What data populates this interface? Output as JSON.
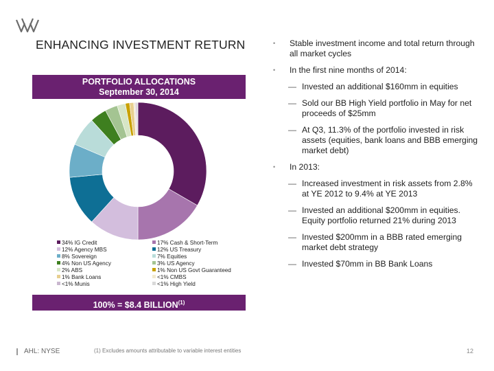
{
  "title": "ENHANCING INVESTMENT RETURN",
  "allocation_banner": {
    "line1": "PORTFOLIO ALLOCATIONS",
    "line2": "September 30, 2014"
  },
  "total_banner": {
    "text": "100% = $8.4 BILLION",
    "note_ref": "(1)"
  },
  "chart_data": {
    "type": "pie",
    "title": "PORTFOLIO ALLOCATIONS September 30, 2014",
    "labels": [
      "34% IG Credit",
      "17% Cash & Short-Term",
      "12% Agency MBS",
      "12% US Treasury",
      "8% Sovereign",
      "7% Equities",
      "4% Non US Agency",
      "3% US Agency",
      "2% ABS",
      "1% Non US Govt Guaranteed",
      "1% Bank Loans",
      "<1% CMBS",
      "<1% Munis",
      "<1% High Yield"
    ],
    "values": [
      34,
      17,
      12,
      12,
      8,
      7,
      4,
      3,
      2,
      1,
      1,
      0.4,
      0.3,
      0.3
    ],
    "colors": [
      "#5c1c5e",
      "#a775ad",
      "#d3bedd",
      "#0e6f95",
      "#6caec8",
      "#b9dcd9",
      "#3e7f1f",
      "#a4c492",
      "#d7e6c6",
      "#c9a100",
      "#e8cf8f",
      "#f2ead0",
      "#c9b7cf",
      "#d9d9d9"
    ],
    "legend": "bottom"
  },
  "bullets": [
    {
      "type": "main",
      "text": "Stable investment income and total return through all market cycles"
    },
    {
      "type": "main",
      "text": "In the first nine months of 2014:"
    },
    {
      "type": "sub",
      "text": "Invested an additional $160mm in equities"
    },
    {
      "type": "sub",
      "text": "Sold our BB High Yield portfolio in May for net proceeds of $25mm"
    },
    {
      "type": "sub",
      "text": "At Q3, 11.3% of the portfolio invested in risk assets (equities, bank loans and BBB emerging market debt)"
    },
    {
      "type": "main",
      "text": "In 2013:"
    },
    {
      "type": "sub",
      "text": "Increased investment in risk assets from 2.8% at YE 2012 to 9.4% at YE 2013"
    },
    {
      "type": "sub",
      "text": "Invested an additional $200mm in equities. Equity portfolio returned 21% during 2013"
    },
    {
      "type": "sub",
      "text": "Invested $200mm in a BBB rated emerging market debt strategy"
    },
    {
      "type": "sub",
      "text": "Invested $70mm in BB Bank Loans"
    }
  ],
  "bullet_markers": {
    "main": "•",
    "sub": "—"
  },
  "footer": {
    "ticker": "AHL: NYSE",
    "footnote": "(1)    Excludes amounts attributable to variable interest entities",
    "page": "12"
  }
}
